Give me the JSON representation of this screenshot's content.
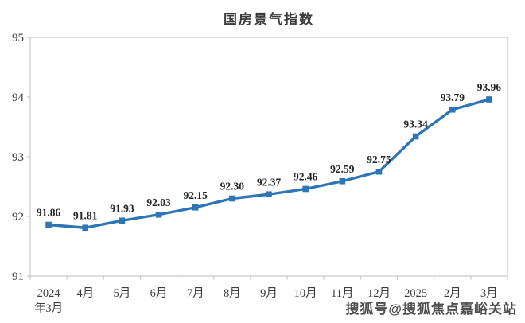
{
  "chart_data": {
    "type": "line",
    "title": "国房景气指数",
    "categories": [
      "2024\n年3月",
      "4月",
      "5月",
      "6月",
      "7月",
      "8月",
      "9月",
      "10月",
      "11月",
      "12月",
      "2025",
      "2月",
      "3月"
    ],
    "values": [
      91.86,
      91.81,
      91.93,
      92.03,
      92.15,
      92.3,
      92.37,
      92.46,
      92.59,
      92.75,
      93.34,
      93.79,
      93.96
    ],
    "data_labels": [
      "91.86",
      "91.81",
      "91.93",
      "92.03",
      "92.15",
      "92.30",
      "92.37",
      "92.46",
      "92.59",
      "92.75",
      "93.34",
      "93.79",
      "93.96"
    ],
    "xlabel": "",
    "ylabel": "",
    "ylim": [
      91,
      95
    ],
    "y_ticks": [
      91,
      92,
      93,
      94,
      95
    ],
    "grid": false,
    "legend": "none",
    "line_color": "#2E75B6",
    "marker_shape": "square",
    "axis_color": "#c8c8c8",
    "tick_label_color": "#3d3d3d",
    "data_label_color": "#262626"
  },
  "watermark": {
    "text": "搜狐号@搜狐焦点嘉峪关站"
  }
}
